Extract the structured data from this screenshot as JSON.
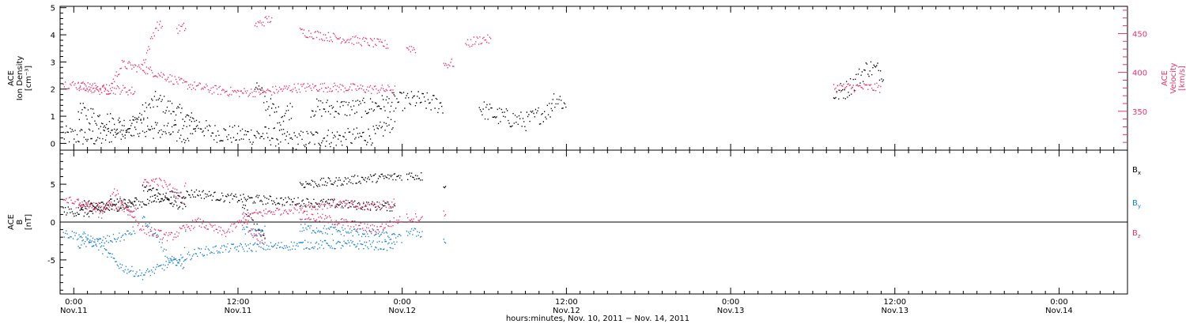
{
  "chart_data": [
    {
      "type": "scatter",
      "panel": "top",
      "ylabel_left": [
        "ACE",
        "Ion Density",
        "[cm⁻³]"
      ],
      "ylabel_right": [
        "ACE",
        "Velocity",
        "[km/s]"
      ],
      "ylim_left": [
        -0.25,
        5.05
      ],
      "ylim_right": [
        300,
        485
      ],
      "yticks_left": [
        "0",
        "1",
        "2",
        "3",
        "4",
        "5"
      ],
      "yticks_right": [
        "350",
        "400",
        "450"
      ],
      "xlim_hours": [
        -1,
        77
      ],
      "grid": false,
      "series": [
        {
          "key": "density",
          "color": "#000000",
          "axis": "left",
          "segments": [
            {
              "x": [
                -0.8,
                2,
                4,
                6,
                8,
                10,
                12,
                14,
                16,
                18,
                20,
                22,
                23.5
              ],
              "y": [
                0.3,
                0.2,
                0.6,
                1.6,
                1.0,
                0.4,
                0.3,
                0.3,
                0.1,
                0.2,
                0.2,
                0.3,
                0.9
              ]
            },
            {
              "x": [
                0.3,
                2,
                4,
                6,
                8,
                9
              ],
              "y": [
                1.2,
                0.9,
                0.6,
                0.5,
                0.3,
                0.7
              ]
            },
            {
              "x": [
                13.2,
                14,
                15,
                16
              ],
              "y": [
                2.2,
                1.5,
                1.0,
                1.3
              ]
            },
            {
              "x": [
                17.3,
                19,
                21,
                23,
                25,
                27
              ],
              "y": [
                1.3,
                1.3,
                1.3,
                1.5,
                1.6,
                1.4
              ]
            },
            {
              "x": [
                29.6,
                31,
                33,
                35
              ],
              "y": [
                1.3,
                1.0,
                0.8,
                1.3
              ]
            },
            {
              "x": [
                34.9,
                35.5,
                36
              ],
              "y": [
                1.7,
                1.6,
                1.3
              ]
            },
            {
              "x": [
                55.5,
                56.5,
                58,
                59.2
              ],
              "y": [
                1.8,
                2.0,
                2.8,
                2.6
              ]
            }
          ]
        },
        {
          "key": "velocity",
          "color": "#e8336a",
          "axis": "right",
          "segments": [
            {
              "x": [
                -0.8,
                1,
                2.5,
                3.5,
                5,
                6.5,
                8,
                10,
                12,
                14,
                16,
                18,
                20,
                22,
                23.5
              ],
              "y": [
                385,
                382,
                378,
                410,
                405,
                396,
                385,
                378,
                374,
                375,
                380,
                381,
                380,
                378,
                378
              ]
            },
            {
              "x": [
                0.3,
                2,
                3.5,
                4.5
              ],
              "y": [
                382,
                377,
                378,
                375
              ]
            },
            {
              "x": [
                5,
                6,
                6.5
              ],
              "y": [
                410,
                460,
                460
              ]
            },
            {
              "x": [
                7.5,
                8,
                8.2
              ],
              "y": [
                455,
                458,
                457
              ]
            },
            {
              "x": [
                13.2,
                13.8,
                14.5
              ],
              "y": [
                460,
                465,
                470
              ]
            },
            {
              "x": [
                16.5,
                18.5,
                21,
                23
              ],
              "y": [
                452,
                446,
                440,
                435
              ]
            },
            {
              "x": [
                24.3,
                25
              ],
              "y": [
                432,
                430
              ]
            },
            {
              "x": [
                27,
                27.8
              ],
              "y": [
                410,
                412
              ]
            },
            {
              "x": [
                28.6,
                29.2,
                30,
                30.5
              ],
              "y": [
                435,
                440,
                443,
                441
              ]
            },
            {
              "x": [
                55.5,
                57,
                59
              ],
              "y": [
                380,
                381,
                380
              ]
            }
          ]
        }
      ]
    },
    {
      "type": "scatter",
      "panel": "bottom",
      "ylabel_left": [
        "ACE",
        "B",
        "[nT]"
      ],
      "ylim": [
        -9.5,
        9.5
      ],
      "yticks": [
        "-5",
        "0",
        "5"
      ],
      "zero_line": true,
      "xlim_hours": [
        -1,
        77
      ],
      "xtick_times": [
        "0:00",
        "12:00",
        "0:00",
        "12:00",
        "0:00",
        "12:00",
        "0:00"
      ],
      "xtick_dates": [
        "Nov.11",
        "Nov.11",
        "Nov.12",
        "Nov.12",
        "Nov.13",
        "Nov.13",
        "Nov.14"
      ],
      "xlabel": "hours:minutes, Nov. 10, 2011 − Nov. 14, 2011",
      "legend": [
        "B",
        "B",
        "B"
      ],
      "legend_sub": [
        "x",
        "y",
        "z"
      ],
      "legend_colors": [
        "#000000",
        "#1a7fd4",
        "#e8336a"
      ],
      "legend_position": "right",
      "grid": false,
      "series": [
        {
          "key": "Bx",
          "color": "#000000",
          "segments": [
            {
              "x": [
                -0.8,
                1,
                2,
                3,
                5,
                7,
                9,
                11,
                13,
                15,
                17,
                19,
                21,
                23.5
              ],
              "y": [
                1.5,
                1.2,
                1.5,
                2.0,
                2.5,
                3.5,
                3.8,
                3.2,
                3.0,
                2.8,
                2.6,
                2.4,
                2.2,
                2.0
              ]
            },
            {
              "x": [
                0.3,
                2,
                4,
                4.6
              ],
              "y": [
                2.3,
                2.5,
                2.5,
                2.7
              ]
            },
            {
              "x": [
                5,
                6,
                7,
                8,
                8.2
              ],
              "y": [
                4.5,
                4.0,
                2.5,
                2.0,
                1.5
              ]
            },
            {
              "x": [
                12.3,
                13,
                14
              ],
              "y": [
                2.5,
                0.0,
                -2.0
              ]
            },
            {
              "x": [
                16.5,
                19,
                21,
                24
              ],
              "y": [
                5.0,
                5.3,
                5.7,
                6.0
              ]
            },
            {
              "x": [
                24.3,
                25.5
              ],
              "y": [
                6.2,
                6.0
              ]
            },
            {
              "x": [
                27,
                27.2
              ],
              "y": [
                5.0,
                5.0
              ]
            }
          ]
        },
        {
          "key": "By",
          "color": "#1a7fd4",
          "segments": [
            {
              "x": [
                -0.8,
                1,
                2,
                3.5,
                5,
                7,
                9,
                11,
                13,
                15,
                17,
                19,
                21,
                23.5
              ],
              "y": [
                -1.5,
                -2.0,
                -3.5,
                -6.0,
                -7.0,
                -5.5,
                -4.0,
                -3.5,
                -3.3,
                -3.2,
                -3.0,
                -3.0,
                -3.0,
                -3.2
              ]
            },
            {
              "x": [
                0.3,
                2,
                3.5,
                4.5
              ],
              "y": [
                -3.0,
                -2.5,
                -2.0,
                -1.0
              ]
            },
            {
              "x": [
                5,
                6,
                7,
                8,
                8.2
              ],
              "y": [
                0.5,
                -2.0,
                -5.0,
                -6.0,
                0.5
              ]
            },
            {
              "x": [
                12.3,
                13,
                14
              ],
              "y": [
                -0.8,
                -1.5,
                -1.0
              ]
            },
            {
              "x": [
                16.5,
                18,
                20,
                22,
                24
              ],
              "y": [
                -0.8,
                -1.0,
                -1.3,
                -1.5,
                -2.3
              ]
            },
            {
              "x": [
                24.3,
                25.5
              ],
              "y": [
                -1.3,
                -1.5
              ]
            },
            {
              "x": [
                27,
                27.2
              ],
              "y": [
                -2.5,
                -2.5
              ]
            }
          ]
        },
        {
          "key": "Bz",
          "color": "#e8336a",
          "segments": [
            {
              "x": [
                -0.8,
                1,
                2,
                3,
                5,
                7,
                9,
                11,
                13,
                15,
                17,
                19,
                21,
                23.5
              ],
              "y": [
                3.0,
                2.0,
                1.0,
                4.0,
                -1.0,
                -2.0,
                0.0,
                -1.5,
                1.0,
                1.5,
                2.0,
                2.5,
                2.0,
                2.5
              ]
            },
            {
              "x": [
                0.3,
                2,
                4,
                4.6
              ],
              "y": [
                2.5,
                2.0,
                1.5,
                2.0
              ]
            },
            {
              "x": [
                5,
                6,
                7,
                8,
                8.2
              ],
              "y": [
                5.0,
                5.5,
                4.5,
                3.0,
                7.0
              ]
            },
            {
              "x": [
                12.3,
                13,
                14
              ],
              "y": [
                1.5,
                -1.5,
                -2.5
              ]
            },
            {
              "x": [
                16.5,
                18,
                20,
                22,
                24
              ],
              "y": [
                0.8,
                0.5,
                -0.2,
                -1.0,
                0.5
              ]
            },
            {
              "x": [
                24.3,
                25.5
              ],
              "y": [
                0.5,
                0.6
              ]
            },
            {
              "x": [
                27,
                27.2
              ],
              "y": [
                1.0,
                1.0
              ]
            }
          ]
        }
      ]
    }
  ]
}
